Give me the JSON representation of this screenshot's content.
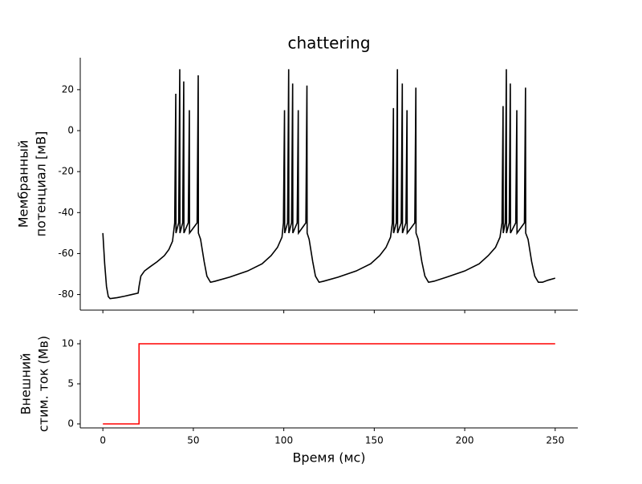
{
  "chart_data": [
    {
      "type": "line",
      "title": "chattering",
      "ylabel": [
        "Мембранный",
        "потенциал [мВ]"
      ],
      "color": "#000000",
      "xlim": [
        -12.5,
        262.5
      ],
      "xticks": [
        0,
        50,
        100,
        150,
        200,
        250
      ],
      "ylim": [
        -87.6,
        35.6
      ],
      "yticks": [
        -80,
        -60,
        -40,
        -20,
        0,
        20
      ],
      "x": [
        0,
        1,
        2,
        3,
        4,
        8,
        12,
        16,
        19.5,
        20,
        21,
        23,
        26,
        30,
        34,
        36.5,
        38.5,
        39.7,
        40.3,
        40.4,
        41.9,
        42.5,
        42.6,
        44.1,
        44.7,
        44.8,
        47.2,
        47.8,
        47.9,
        52.1,
        52.7,
        52.8,
        54,
        56,
        57.5,
        59.5,
        62,
        70,
        80,
        88,
        93,
        96.5,
        99,
        99.8,
        100.4,
        100.5,
        102.1,
        102.7,
        102.8,
        104.3,
        104.9,
        105,
        107.4,
        108,
        108.1,
        112.2,
        112.8,
        112.9,
        114,
        116,
        117.5,
        119.5,
        122,
        130,
        140,
        148,
        153,
        156.5,
        159,
        160,
        160.6,
        160.7,
        162.2,
        162.8,
        162.9,
        164.9,
        165.5,
        165.6,
        167.5,
        168.1,
        168.2,
        172.4,
        173,
        173.1,
        174.3,
        176.3,
        178,
        180,
        183,
        190,
        200,
        208,
        213,
        217,
        219.5,
        220.6,
        221.2,
        221.3,
        222.4,
        223,
        223.1,
        224.6,
        225.2,
        225.3,
        228.2,
        228.8,
        228.9,
        233,
        233.6,
        233.7,
        235,
        237,
        238.7,
        240.7,
        243,
        246,
        250
      ],
      "values": [
        -50,
        -65,
        -76,
        -81,
        -82,
        -81.5,
        -80.8,
        -80,
        -79.3,
        -76,
        -71,
        -68.5,
        -66.5,
        -64,
        -61,
        -58,
        -54,
        -45,
        18,
        -50,
        -45,
        30,
        -50,
        -45,
        24,
        -50,
        -45,
        10,
        -50,
        -45,
        27,
        -50,
        -53,
        -64,
        -71,
        -74,
        -73.5,
        -71.5,
        -68.5,
        -65,
        -61,
        -57,
        -52,
        -45,
        10,
        -50,
        -45,
        30,
        -50,
        -45,
        23,
        -50,
        -45,
        10,
        -50,
        -45,
        22,
        -50,
        -53,
        -64,
        -71,
        -74,
        -73.5,
        -71.5,
        -68.5,
        -65,
        -61,
        -57,
        -52,
        -45,
        11,
        -50,
        -45,
        30,
        -50,
        -45,
        23,
        -50,
        -45,
        10,
        -50,
        -45,
        21,
        -50,
        -53,
        -64,
        -71,
        -74,
        -73.5,
        -71.5,
        -68.5,
        -65,
        -61,
        -57,
        -52,
        -45,
        12,
        -50,
        -45,
        30,
        -50,
        -45,
        23,
        -50,
        -45,
        10,
        -50,
        -45,
        21,
        -50,
        -53,
        -64,
        -71,
        -74,
        -74,
        -73,
        -72
      ]
    },
    {
      "type": "line",
      "xlabel": "Время (мс)",
      "ylabel": [
        "Внешний",
        "стим. ток (Мв)"
      ],
      "color": "#ff0000",
      "xlim": [
        -12.5,
        262.5
      ],
      "xticks": [
        0,
        50,
        100,
        150,
        200,
        250
      ],
      "ylim": [
        -0.5,
        10.5
      ],
      "yticks": [
        0,
        5,
        10
      ],
      "x": [
        0,
        20,
        20,
        250
      ],
      "values": [
        0,
        0,
        10,
        10
      ]
    }
  ]
}
